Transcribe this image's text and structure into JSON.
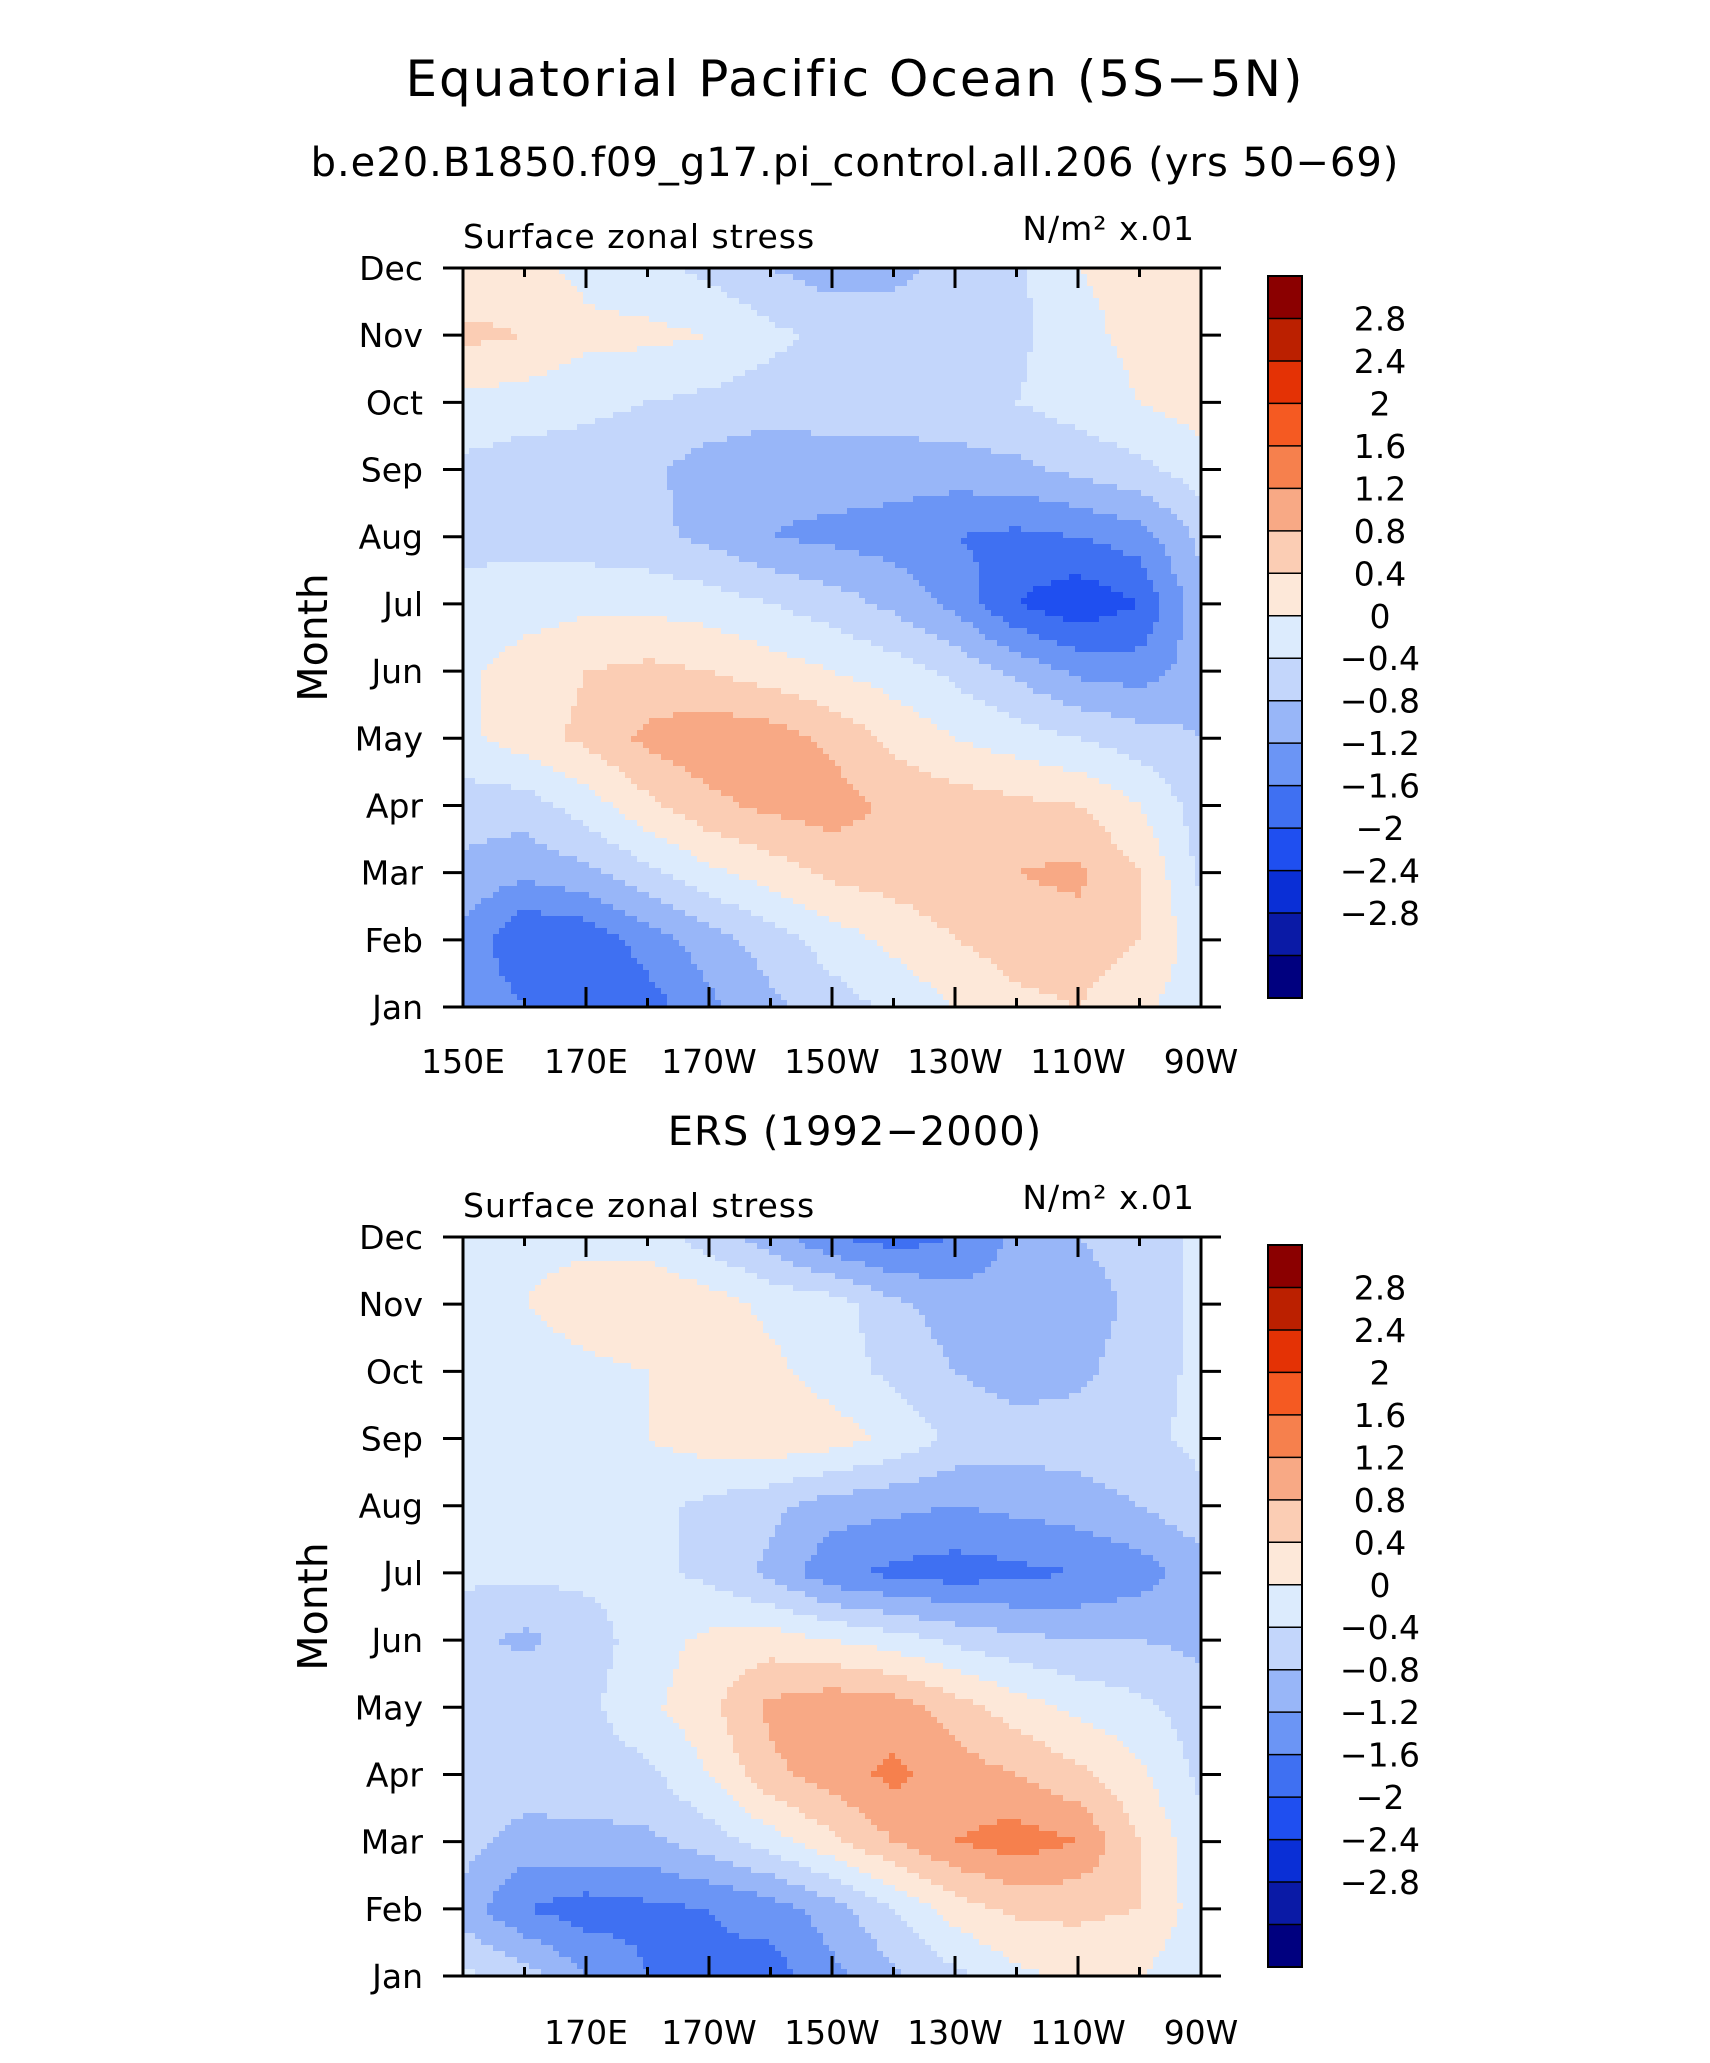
{
  "title": "Equatorial Pacific Ocean (5S−5N)",
  "colorbar": {
    "levels": [
      -2.8,
      -2.4,
      -2,
      -1.6,
      -1.2,
      -0.8,
      -0.4,
      0,
      0.4,
      0.8,
      1.2,
      1.6,
      2,
      2.4,
      2.8
    ],
    "labels": [
      "2.8",
      "2.4",
      "2",
      "1.6",
      "1.2",
      "0.8",
      "0.4",
      "0",
      "−0.4",
      "−0.8",
      "−1.2",
      "−1.6",
      "−2",
      "−2.4",
      "−2.8"
    ],
    "colors": [
      "#00007f",
      "#0a1aa6",
      "#0a2fd6",
      "#1f4ff0",
      "#3f70f2",
      "#6b95f5",
      "#98b6f8",
      "#c3d6fb",
      "#dcebfd",
      "#fde8d9",
      "#fbcdb4",
      "#f8a985",
      "#f6804d",
      "#f55a22",
      "#e43205",
      "#bb2000",
      "#8b0000"
    ]
  },
  "chart_data": [
    {
      "type": "heatmap",
      "subtitle": "b.e20.B1850.f09_g17.pi_control.all.206 (yrs 50−69)",
      "left_label": "Surface zonal stress",
      "right_label": "N/m² x.01",
      "ylabel": "Month",
      "xlim": [
        150,
        270
      ],
      "x_ticks": [
        "150E",
        "170E",
        "170W",
        "150W",
        "130W",
        "110W",
        "90W"
      ],
      "y_ticks": [
        "Jan",
        "Feb",
        "Mar",
        "Apr",
        "May",
        "Jun",
        "Jul",
        "Aug",
        "Sep",
        "Oct",
        "Nov",
        "Dec"
      ],
      "x": [
        150,
        160,
        170,
        180,
        190,
        200,
        210,
        220,
        230,
        240,
        250,
        260,
        270
      ],
      "z": [
        [
          -0.8,
          -1.2,
          -1.6,
          -1.4,
          -0.9,
          -0.5,
          -0.2,
          0.1,
          0.4,
          0.7,
          0.8,
          0.5,
          0.1
        ],
        [
          -0.9,
          -1.6,
          -1.5,
          -1.0,
          -0.6,
          -0.2,
          0.2,
          0.5,
          0.8,
          1.0,
          1.0,
          0.8,
          0.2
        ],
        [
          -0.5,
          -0.7,
          -0.5,
          -0.1,
          0.3,
          0.6,
          0.9,
          1.0,
          1.1,
          1.2,
          1.3,
          0.8,
          -0.1
        ],
        [
          -0.2,
          -0.2,
          0.2,
          0.7,
          1.1,
          1.3,
          1.4,
          1.1,
          1.0,
          0.9,
          0.8,
          0.4,
          -0.2
        ],
        [
          0.3,
          0.6,
          0.9,
          1.3,
          1.5,
          1.4,
          1.1,
          0.7,
          0.4,
          0.2,
          0.0,
          -0.2,
          -0.4
        ],
        [
          0.3,
          0.6,
          0.8,
          0.9,
          0.8,
          0.6,
          0.4,
          0.2,
          -0.1,
          -0.5,
          -0.9,
          -1.0,
          -0.6
        ],
        [
          0.1,
          0.2,
          0.3,
          0.3,
          0.2,
          0.0,
          -0.2,
          -0.5,
          -0.9,
          -1.6,
          -1.9,
          -1.6,
          -0.5
        ],
        [
          -0.1,
          -0.1,
          -0.2,
          -0.3,
          -0.5,
          -0.8,
          -0.9,
          -1.0,
          -1.2,
          -1.3,
          -1.2,
          -1.0,
          -0.3
        ],
        [
          -0.1,
          -0.2,
          -0.2,
          -0.3,
          -0.6,
          -0.7,
          -0.6,
          -0.6,
          -0.6,
          -0.5,
          -0.3,
          -0.1,
          0.2
        ],
        [
          0.3,
          0.2,
          0.1,
          0.0,
          -0.1,
          -0.2,
          -0.2,
          -0.2,
          -0.1,
          0.0,
          0.2,
          0.4,
          0.6
        ],
        [
          0.9,
          0.8,
          0.5,
          0.5,
          0.4,
          0.1,
          -0.1,
          -0.2,
          -0.2,
          -0.1,
          0.3,
          0.5,
          0.6
        ],
        [
          0.5,
          0.5,
          0.3,
          0.1,
          -0.1,
          -0.4,
          -0.6,
          -0.5,
          -0.3,
          -0.1,
          0.4,
          0.5,
          0.6
        ]
      ]
    },
    {
      "type": "heatmap",
      "subtitle": "ERS (1992−2000)",
      "left_label": "Surface zonal stress",
      "right_label": "N/m² x.01",
      "ylabel": "Month",
      "xlim": [
        150,
        270
      ],
      "x_ticks": [
        "170E",
        "170W",
        "150W",
        "130W",
        "110W",
        "90W"
      ],
      "y_ticks": [
        "Jan",
        "Feb",
        "Mar",
        "Apr",
        "May",
        "Jun",
        "Jul",
        "Aug",
        "Sep",
        "Oct",
        "Nov",
        "Dec"
      ],
      "x": [
        150,
        160,
        170,
        180,
        190,
        200,
        210,
        220,
        230,
        240,
        250,
        260,
        270
      ],
      "z": [
        [
          0.1,
          -0.2,
          -0.8,
          -1.2,
          -1.3,
          -1.4,
          -0.9,
          -0.5,
          -0.1,
          0.3,
          0.5,
          0.4,
          0.1
        ],
        [
          -0.6,
          -1.2,
          -1.4,
          -1.3,
          -1.2,
          -1.0,
          -0.6,
          0.0,
          0.6,
          0.9,
          0.9,
          0.8,
          0.2
        ],
        [
          -0.2,
          -0.6,
          -0.5,
          -0.5,
          -0.2,
          0.2,
          0.7,
          1.2,
          1.6,
          1.8,
          1.6,
          0.8,
          0.1
        ],
        [
          -0.1,
          -0.1,
          -0.2,
          -0.1,
          0.4,
          1.1,
          1.4,
          1.7,
          1.4,
          1.2,
          0.9,
          0.5,
          -0.1
        ],
        [
          -0.1,
          0.0,
          -0.1,
          0.3,
          0.7,
          1.3,
          1.5,
          1.4,
          1.0,
          0.6,
          0.3,
          0.1,
          -0.2
        ],
        [
          -0.3,
          -0.5,
          -0.2,
          0.2,
          0.5,
          0.6,
          0.4,
          0.2,
          -0.1,
          -0.3,
          -0.4,
          -0.4,
          -0.5
        ],
        [
          0.1,
          0.1,
          0.1,
          0.1,
          -0.1,
          -0.5,
          -1.1,
          -1.3,
          -1.4,
          -1.3,
          -1.2,
          -1.0,
          -0.6
        ],
        [
          0.3,
          0.2,
          0.1,
          0.1,
          -0.1,
          -0.3,
          -0.6,
          -0.7,
          -0.8,
          -0.7,
          -0.6,
          -0.4,
          -0.1
        ],
        [
          0.2,
          0.3,
          0.3,
          0.4,
          0.6,
          0.7,
          0.6,
          0.3,
          -0.1,
          -0.2,
          -0.2,
          -0.1,
          0.1
        ],
        [
          0.3,
          0.2,
          0.3,
          0.4,
          0.6,
          0.5,
          0.2,
          -0.1,
          -0.4,
          -0.6,
          -0.5,
          -0.2,
          0.1
        ],
        [
          0.3,
          0.4,
          0.6,
          0.8,
          0.6,
          0.3,
          0.2,
          -0.3,
          -0.6,
          -0.7,
          -0.6,
          -0.3,
          0.1
        ],
        [
          0.4,
          0.3,
          0.3,
          0.2,
          -0.2,
          -0.6,
          -1.2,
          -1.4,
          -1.2,
          -0.7,
          -0.4,
          -0.2,
          0.1
        ]
      ]
    }
  ]
}
